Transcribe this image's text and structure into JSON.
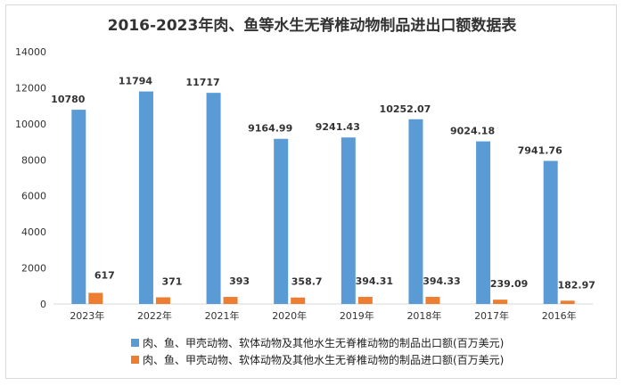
{
  "chart_data": {
    "type": "bar",
    "title": "2016-2023年肉、鱼等水生无脊椎动物制品进出口额数据表",
    "categories": [
      "2023年",
      "2022年",
      "2021年",
      "2020年",
      "2019年",
      "2018年",
      "2017年",
      "2016年"
    ],
    "series": [
      {
        "name": "肉、鱼、甲壳动物、软体动物及其他水生无脊椎动物的制品出口额(百万美元)",
        "color": "#5b9bd5",
        "values": [
          10780,
          11794,
          11717,
          9164.99,
          9241.43,
          10252.07,
          9024.18,
          7941.76
        ]
      },
      {
        "name": "肉、鱼、甲壳动物、软体动物及其他水生无脊椎动物的制品进口额(百万美元)",
        "color": "#ed7d31",
        "values": [
          617,
          371,
          393,
          358.7,
          394.31,
          394.33,
          239.09,
          182.97
        ]
      }
    ],
    "ylim": [
      0,
      14000
    ],
    "yticks": [
      0,
      2000,
      4000,
      6000,
      8000,
      10000,
      12000,
      14000
    ],
    "grid": false,
    "legend": "bottom",
    "xlabel": "",
    "ylabel": ""
  }
}
